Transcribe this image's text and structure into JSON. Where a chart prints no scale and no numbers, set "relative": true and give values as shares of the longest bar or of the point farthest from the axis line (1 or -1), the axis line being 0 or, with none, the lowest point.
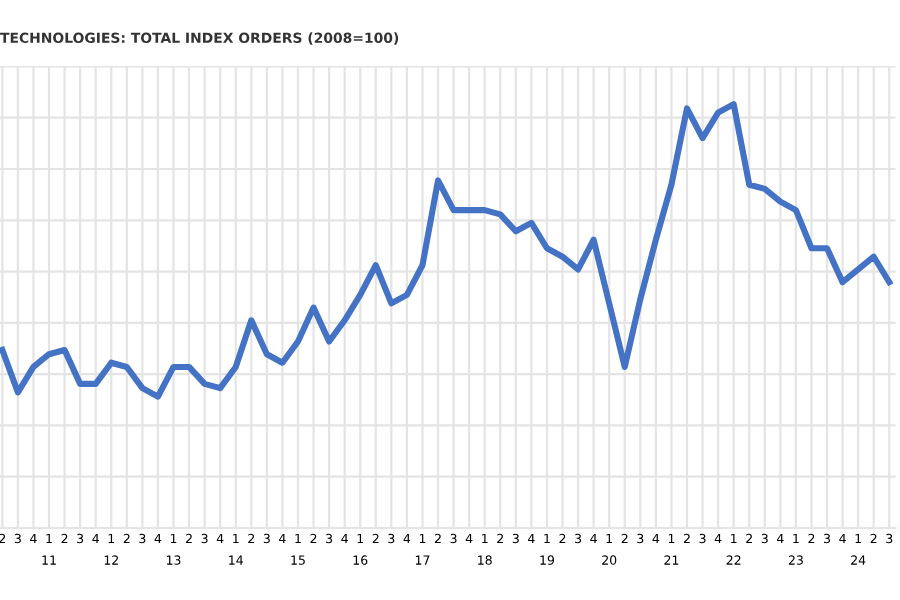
{
  "chart_data": {
    "type": "line",
    "title": "TECHNOLOGIES: TOTAL INDEX ORDERS (2008=100)",
    "relative": true,
    "grid": true,
    "legend": false,
    "tick_labels": "x",
    "marker": "none",
    "line_style": "solid",
    "categories": [
      "2",
      "3",
      "4",
      "1\n11",
      "2",
      "3",
      "4",
      "1\n12",
      "2",
      "3",
      "4",
      "1\n13",
      "2",
      "3",
      "4",
      "1\n14",
      "2",
      "3",
      "4",
      "1\n15",
      "2",
      "3",
      "4",
      "1\n16",
      "2",
      "3",
      "4",
      "1\n17",
      "2",
      "3",
      "4",
      "1\n18",
      "2",
      "3",
      "4",
      "1\n19",
      "2",
      "3",
      "4",
      "1\n20",
      "2",
      "3",
      "4",
      "1\n21",
      "2",
      "3",
      "4",
      "1\n22",
      "2",
      "3",
      "4",
      "1\n23",
      "2",
      "3",
      "4",
      "1\n24",
      "2",
      "3"
    ],
    "series": [
      {
        "color": "#4472c4",
        "values": [
          0.42,
          0.32,
          0.38,
          0.41,
          0.42,
          0.34,
          0.34,
          0.39,
          0.38,
          0.33,
          0.31,
          0.38,
          0.38,
          0.34,
          0.33,
          0.38,
          0.49,
          0.41,
          0.39,
          0.44,
          0.52,
          0.44,
          0.49,
          0.55,
          0.62,
          0.53,
          0.55,
          0.62,
          0.82,
          0.75,
          0.75,
          0.75,
          0.74,
          0.7,
          0.72,
          0.66,
          0.64,
          0.61,
          0.68,
          0.53,
          0.38,
          0.54,
          0.68,
          0.81,
          0.99,
          0.92,
          0.98,
          1,
          0.81,
          0.8,
          0.77,
          0.75,
          0.66,
          0.66,
          0.58,
          0.61,
          0.64,
          0.58
        ]
      }
    ]
  }
}
